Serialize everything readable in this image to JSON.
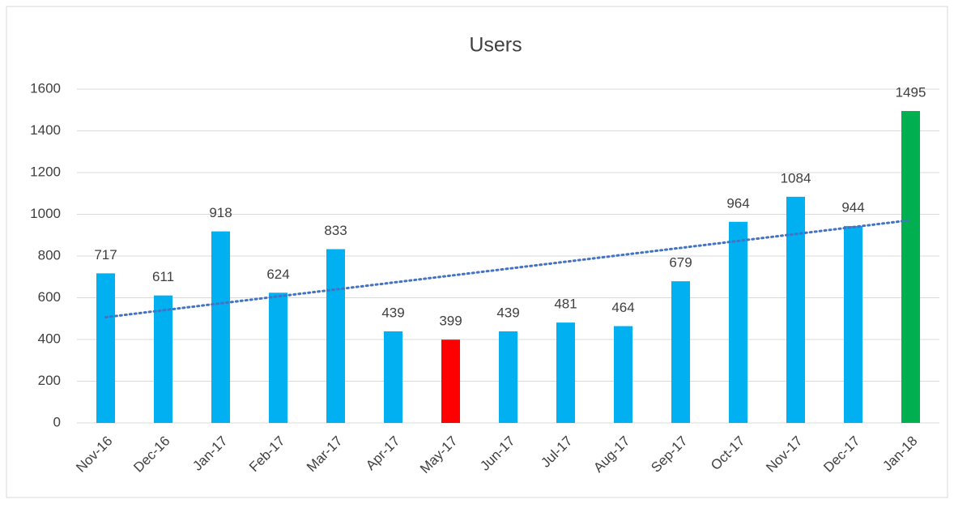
{
  "chart_data": {
    "type": "bar",
    "title": "Users",
    "categories": [
      "Nov-16",
      "Dec-16",
      "Jan-17",
      "Feb-17",
      "Mar-17",
      "Apr-17",
      "May-17",
      "Jun-17",
      "Jul-17",
      "Aug-17",
      "Sep-17",
      "Oct-17",
      "Nov-17",
      "Dec-17",
      "Jan-18"
    ],
    "values": [
      717,
      611,
      918,
      624,
      833,
      439,
      399,
      439,
      481,
      464,
      679,
      964,
      1084,
      944,
      1495
    ],
    "colors": [
      "#00b0f0",
      "#00b0f0",
      "#00b0f0",
      "#00b0f0",
      "#00b0f0",
      "#00b0f0",
      "#ff0000",
      "#00b0f0",
      "#00b0f0",
      "#00b0f0",
      "#00b0f0",
      "#00b0f0",
      "#00b0f0",
      "#00b0f0",
      "#00b050"
    ],
    "ylim": [
      0,
      1600
    ],
    "yticks": [
      0,
      200,
      400,
      600,
      800,
      1000,
      1200,
      1400,
      1600
    ],
    "grid": true,
    "data_labels": true,
    "trendline": "linear",
    "trendline_color": "#4472c4"
  }
}
